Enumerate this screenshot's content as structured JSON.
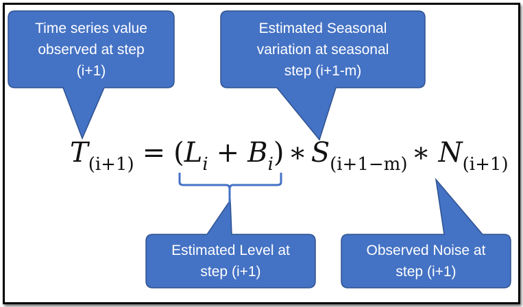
{
  "colors": {
    "callout_fill": "#4472C4",
    "callout_border": "#2F528F",
    "brace": "#4472C4",
    "text": "#ffffff"
  },
  "callouts": {
    "observed": "Time series value\nobserved at step\n(i+1)",
    "seasonal": "Estimated Seasonal\nvariation at seasonal\nstep (i+1-m)",
    "level": "Estimated Level at\nstep (i+1)",
    "noise": "Observed Noise at\nstep (i+1)"
  },
  "equation": {
    "T": "T",
    "T_sub": "(i+1)",
    "equals": "=",
    "open_paren": "(",
    "L": "L",
    "L_sub": "i",
    "plus": "+",
    "B": "B",
    "B_sub": "i",
    "close_paren": ")",
    "times1": "∗",
    "S": "S",
    "S_sub": "(i+1−m)",
    "times2": "∗",
    "N": "N",
    "N_sub": "(i+1)"
  }
}
